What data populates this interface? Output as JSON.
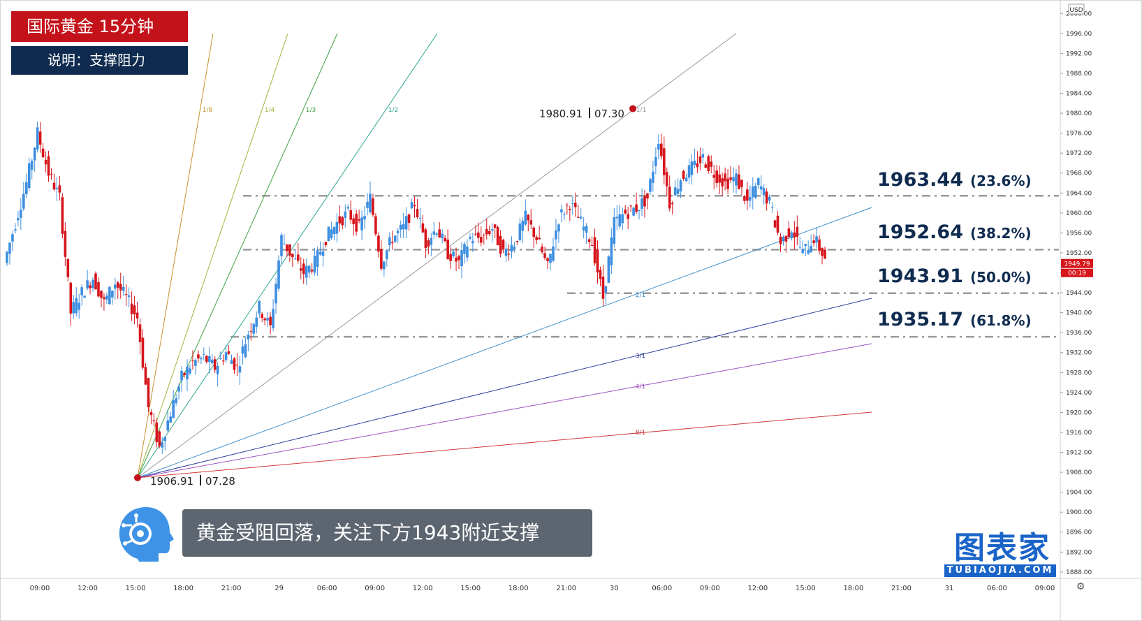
{
  "header": {
    "title": "国际黄金  15分钟",
    "subtitle": "说明：支撑阻力"
  },
  "caption": "黄金受阻回落，关注下方1943附近支撑",
  "logo": {
    "name": "图表家",
    "sub": "TUBIAOJIA.COM"
  },
  "colors": {
    "title_bg": "#c4121a",
    "subtitle_bg": "#0f2b4f",
    "up": "#3d8ee0",
    "down": "#d6151b",
    "level_line": "#9a9a9a",
    "caption_bg": "#5d6570",
    "logo": "#1a64c8"
  },
  "chart_data": {
    "type": "candlestick",
    "currency": "USD",
    "ylim": [
      1887,
      2002
    ],
    "y_ticks": [
      "2000.00",
      "1996.00",
      "1992.00",
      "1988.00",
      "1984.00",
      "1980.00",
      "1976.00",
      "1972.00",
      "1968.00",
      "1964.00",
      "1960.00",
      "1956.00",
      "1952.00",
      "1948.00",
      "1944.00",
      "1940.00",
      "1936.00",
      "1932.00",
      "1928.00",
      "1924.00",
      "1920.00",
      "1916.00",
      "1912.00",
      "1908.00",
      "1904.00",
      "1900.00",
      "1896.00",
      "1892.00",
      "1888.00"
    ],
    "x_ticks": [
      "09:00",
      "12:00",
      "15:00",
      "18:00",
      "21:00",
      "29",
      "06:00",
      "09:00",
      "12:00",
      "15:00",
      "18:00",
      "21:00",
      "30",
      "06:00",
      "09:00",
      "12:00",
      "15:00",
      "18:00",
      "21:00",
      "31",
      "06:00",
      "09:00"
    ],
    "current_price": "1949.79",
    "countdown": "00:19",
    "swing_high": {
      "price": "1980.91",
      "date": "07.30",
      "value": 1980.91
    },
    "swing_low": {
      "price": "1906.91",
      "date": "07.28",
      "value": 1906.91
    },
    "levels": [
      {
        "price": "1963.44",
        "pct": "(23.6%)",
        "value": 1963.44
      },
      {
        "price": "1952.64",
        "pct": "(38.2%)",
        "value": 1952.64
      },
      {
        "price": "1943.91",
        "pct": "(50.0%)",
        "value": 1943.91
      },
      {
        "price": "1935.17",
        "pct": "(61.8%)",
        "value": 1935.17
      }
    ],
    "gann_fan_labels": [
      "1/8",
      "1/4",
      "1/3",
      "1/2",
      "1/1",
      "2/1",
      "3/1",
      "4/1",
      "8/1"
    ],
    "price_path": [
      1950,
      1958,
      1966,
      1976,
      1968,
      1963,
      1940,
      1944,
      1947,
      1942,
      1946,
      1943,
      1939,
      1921,
      1913,
      1920,
      1927,
      1930,
      1931,
      1929,
      1932,
      1929,
      1936,
      1941,
      1937,
      1955,
      1951,
      1948,
      1950,
      1955,
      1958,
      1960,
      1957,
      1963,
      1950,
      1955,
      1957,
      1962,
      1954,
      1957,
      1952,
      1950,
      1955,
      1955,
      1957,
      1952,
      1954,
      1959,
      1955,
      1949,
      1959,
      1962,
      1958,
      1954,
      1943,
      1958,
      1960,
      1961,
      1963,
      1975,
      1962,
      1967,
      1969,
      1971,
      1968,
      1966,
      1967,
      1962,
      1966,
      1962,
      1954,
      1957,
      1952,
      1955,
      1951
    ],
    "x_ticks_pos": "uniform"
  }
}
